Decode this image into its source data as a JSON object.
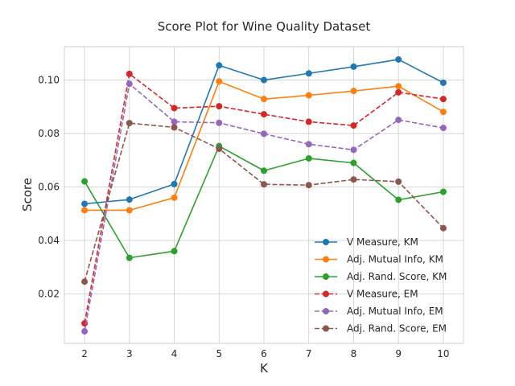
{
  "chart_data": {
    "type": "line",
    "title": "Score Plot for Wine Quality Dataset",
    "xlabel": "K",
    "ylabel": "Score",
    "x": [
      2,
      3,
      4,
      5,
      6,
      7,
      8,
      9,
      10
    ],
    "xlim": [
      1.55,
      10.45
    ],
    "ylim": [
      0.0015,
      0.1125
    ],
    "xticks": [
      "2",
      "3",
      "4",
      "5",
      "6",
      "7",
      "8",
      "9",
      "10"
    ],
    "yticks": [
      {
        "value": 0.02,
        "label": "0.02"
      },
      {
        "value": 0.04,
        "label": "0.04"
      },
      {
        "value": 0.06,
        "label": "0.06"
      },
      {
        "value": 0.08,
        "label": "0.08"
      },
      {
        "value": 0.1,
        "label": "0.10"
      }
    ],
    "grid": true,
    "legend_position": "bottom-right",
    "series": [
      {
        "name": "V Measure, KM",
        "color": "#1f77b4",
        "dash": "solid",
        "values": [
          0.0537,
          0.0553,
          0.0611,
          0.1055,
          0.1,
          0.1025,
          0.105,
          0.1077,
          0.099
        ]
      },
      {
        "name": "Adj. Mutual Info, KM",
        "color": "#ff7f0e",
        "dash": "solid",
        "values": [
          0.0513,
          0.0513,
          0.056,
          0.0995,
          0.0929,
          0.0943,
          0.0959,
          0.0977,
          0.0881
        ]
      },
      {
        "name": "Adj. Rand. Score, KM",
        "color": "#2ca02c",
        "dash": "solid",
        "values": [
          0.0621,
          0.0335,
          0.036,
          0.0753,
          0.0661,
          0.0707,
          0.069,
          0.0552,
          0.0582
        ]
      },
      {
        "name": "V Measure, EM",
        "color": "#d62728",
        "dash": "dashed",
        "values": [
          0.009,
          0.1023,
          0.0895,
          0.0902,
          0.0872,
          0.0844,
          0.083,
          0.0954,
          0.0929
        ]
      },
      {
        "name": "Adj. Mutual Info, EM",
        "color": "#9467bd",
        "dash": "dashed",
        "values": [
          0.006,
          0.0986,
          0.0844,
          0.084,
          0.0799,
          0.076,
          0.0739,
          0.0851,
          0.0821
        ]
      },
      {
        "name": "Adj. Rand. Score, EM",
        "color": "#8c564b",
        "dash": "dashed",
        "values": [
          0.0246,
          0.0839,
          0.0823,
          0.0743,
          0.061,
          0.0607,
          0.0628,
          0.062,
          0.0446
        ]
      }
    ]
  }
}
